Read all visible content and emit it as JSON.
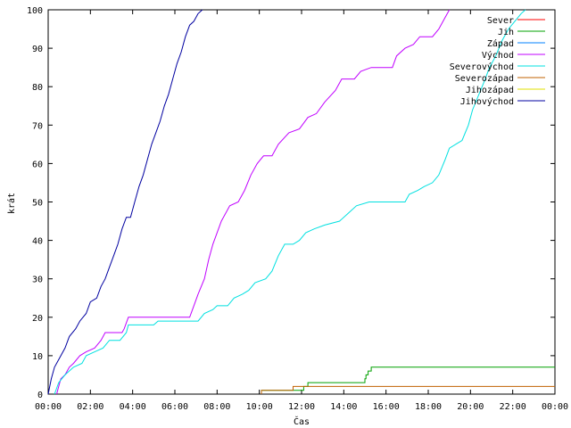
{
  "chart_data": {
    "type": "line",
    "xlabel": "Čas",
    "ylabel": "krát",
    "xlim": [
      0,
      24
    ],
    "ylim": [
      0,
      100
    ],
    "x_ticks": [
      {
        "x": 0,
        "label": "00:00"
      },
      {
        "x": 2,
        "label": "02:00"
      },
      {
        "x": 4,
        "label": "04:00"
      },
      {
        "x": 6,
        "label": "06:00"
      },
      {
        "x": 8,
        "label": "08:00"
      },
      {
        "x": 10,
        "label": "10:00"
      },
      {
        "x": 12,
        "label": "12:00"
      },
      {
        "x": 14,
        "label": "14:00"
      },
      {
        "x": 16,
        "label": "16:00"
      },
      {
        "x": 18,
        "label": "18:00"
      },
      {
        "x": 20,
        "label": "20:00"
      },
      {
        "x": 22,
        "label": "22:00"
      },
      {
        "x": 24,
        "label": "00:00"
      }
    ],
    "y_ticks": [
      0,
      10,
      20,
      30,
      40,
      50,
      60,
      70,
      80,
      90,
      100
    ],
    "legend_position": "top-right",
    "series": [
      {
        "name": "Sever",
        "color": "#ff0000",
        "points": []
      },
      {
        "name": "Jih",
        "color": "#00a000",
        "points": [
          [
            10.1,
            0
          ],
          [
            10.1,
            1
          ],
          [
            12.1,
            1
          ],
          [
            12.1,
            2
          ],
          [
            12.3,
            2
          ],
          [
            12.3,
            3
          ],
          [
            15.0,
            3
          ],
          [
            15.0,
            4
          ],
          [
            15.05,
            4
          ],
          [
            15.05,
            5
          ],
          [
            15.15,
            5
          ],
          [
            15.15,
            6
          ],
          [
            15.3,
            6
          ],
          [
            15.3,
            7
          ],
          [
            24,
            7
          ]
        ]
      },
      {
        "name": "Západ",
        "color": "#0080ff",
        "points": []
      },
      {
        "name": "Východ",
        "color": "#c000ff",
        "points": [
          [
            0.4,
            0
          ],
          [
            0.5,
            2
          ],
          [
            0.6,
            4
          ],
          [
            0.8,
            5
          ],
          [
            1.0,
            7
          ],
          [
            1.2,
            8
          ],
          [
            1.5,
            10
          ],
          [
            1.8,
            11
          ],
          [
            2.2,
            12
          ],
          [
            2.5,
            14
          ],
          [
            2.7,
            16
          ],
          [
            3.5,
            16
          ],
          [
            3.6,
            17
          ],
          [
            3.8,
            20
          ],
          [
            6.7,
            20
          ],
          [
            6.9,
            23
          ],
          [
            7.1,
            26
          ],
          [
            7.4,
            30
          ],
          [
            7.6,
            35
          ],
          [
            7.8,
            39
          ],
          [
            8.2,
            45
          ],
          [
            8.6,
            49
          ],
          [
            9.0,
            50
          ],
          [
            9.3,
            53
          ],
          [
            9.6,
            57
          ],
          [
            9.9,
            60
          ],
          [
            10.2,
            62
          ],
          [
            10.6,
            62
          ],
          [
            10.9,
            65
          ],
          [
            11.4,
            68
          ],
          [
            11.9,
            69
          ],
          [
            12.3,
            72
          ],
          [
            12.7,
            73
          ],
          [
            13.1,
            76
          ],
          [
            13.6,
            79
          ],
          [
            13.9,
            82
          ],
          [
            14.5,
            82
          ],
          [
            14.8,
            84
          ],
          [
            15.3,
            85
          ],
          [
            16.3,
            85
          ],
          [
            16.5,
            88
          ],
          [
            16.9,
            90
          ],
          [
            17.3,
            91
          ],
          [
            17.6,
            93
          ],
          [
            18.2,
            93
          ],
          [
            18.5,
            95
          ],
          [
            18.8,
            98
          ],
          [
            19.0,
            100
          ]
        ]
      },
      {
        "name": "Severovýchod",
        "color": "#00e0e0",
        "points": [
          [
            0.3,
            0
          ],
          [
            0.5,
            3
          ],
          [
            0.8,
            5
          ],
          [
            1.2,
            7
          ],
          [
            1.6,
            8
          ],
          [
            1.8,
            10
          ],
          [
            2.2,
            11
          ],
          [
            2.6,
            12
          ],
          [
            2.9,
            14
          ],
          [
            3.4,
            14
          ],
          [
            3.7,
            16
          ],
          [
            3.8,
            18
          ],
          [
            5.0,
            18
          ],
          [
            5.2,
            19
          ],
          [
            7.1,
            19
          ],
          [
            7.4,
            21
          ],
          [
            7.8,
            22
          ],
          [
            8.0,
            23
          ],
          [
            8.5,
            23
          ],
          [
            8.8,
            25
          ],
          [
            9.2,
            26
          ],
          [
            9.5,
            27
          ],
          [
            9.8,
            29
          ],
          [
            10.3,
            30
          ],
          [
            10.6,
            32
          ],
          [
            10.9,
            36
          ],
          [
            11.2,
            39
          ],
          [
            11.6,
            39
          ],
          [
            11.9,
            40
          ],
          [
            12.2,
            42
          ],
          [
            12.6,
            43
          ],
          [
            13.1,
            44
          ],
          [
            13.8,
            45
          ],
          [
            14.2,
            47
          ],
          [
            14.6,
            49
          ],
          [
            15.2,
            50
          ],
          [
            16.9,
            50
          ],
          [
            17.1,
            52
          ],
          [
            17.5,
            53
          ],
          [
            17.8,
            54
          ],
          [
            18.2,
            55
          ],
          [
            18.5,
            57
          ],
          [
            18.8,
            61
          ],
          [
            19.0,
            64
          ],
          [
            19.3,
            65
          ],
          [
            19.6,
            66
          ],
          [
            19.9,
            70
          ],
          [
            20.1,
            74
          ],
          [
            20.4,
            78
          ],
          [
            20.7,
            82
          ],
          [
            20.9,
            85
          ],
          [
            21.2,
            88
          ],
          [
            21.5,
            92
          ],
          [
            21.8,
            95
          ],
          [
            22.1,
            97
          ],
          [
            22.4,
            99
          ],
          [
            22.6,
            100
          ]
        ]
      },
      {
        "name": "Severozápad",
        "color": "#c06000",
        "points": [
          [
            10.1,
            0
          ],
          [
            10.1,
            1
          ],
          [
            11.6,
            1
          ],
          [
            11.6,
            2
          ],
          [
            24,
            2
          ]
        ]
      },
      {
        "name": "Jihozápad",
        "color": "#e0e000",
        "points": []
      },
      {
        "name": "Jihovýchod",
        "color": "#0000a0",
        "points": [
          [
            0,
            0
          ],
          [
            0.15,
            4
          ],
          [
            0.3,
            7
          ],
          [
            0.5,
            9
          ],
          [
            0.8,
            12
          ],
          [
            1.0,
            15
          ],
          [
            1.3,
            17
          ],
          [
            1.5,
            19
          ],
          [
            1.8,
            21
          ],
          [
            2.0,
            24
          ],
          [
            2.3,
            25
          ],
          [
            2.5,
            28
          ],
          [
            2.7,
            30
          ],
          [
            2.9,
            33
          ],
          [
            3.1,
            36
          ],
          [
            3.3,
            39
          ],
          [
            3.5,
            43
          ],
          [
            3.7,
            46
          ],
          [
            3.9,
            46
          ],
          [
            4.1,
            50
          ],
          [
            4.3,
            54
          ],
          [
            4.5,
            57
          ],
          [
            4.7,
            61
          ],
          [
            4.9,
            65
          ],
          [
            5.1,
            68
          ],
          [
            5.3,
            71
          ],
          [
            5.5,
            75
          ],
          [
            5.7,
            78
          ],
          [
            5.9,
            82
          ],
          [
            6.1,
            86
          ],
          [
            6.3,
            89
          ],
          [
            6.5,
            93
          ],
          [
            6.7,
            96
          ],
          [
            6.9,
            97
          ],
          [
            7.1,
            99
          ],
          [
            7.3,
            100
          ]
        ]
      }
    ]
  }
}
